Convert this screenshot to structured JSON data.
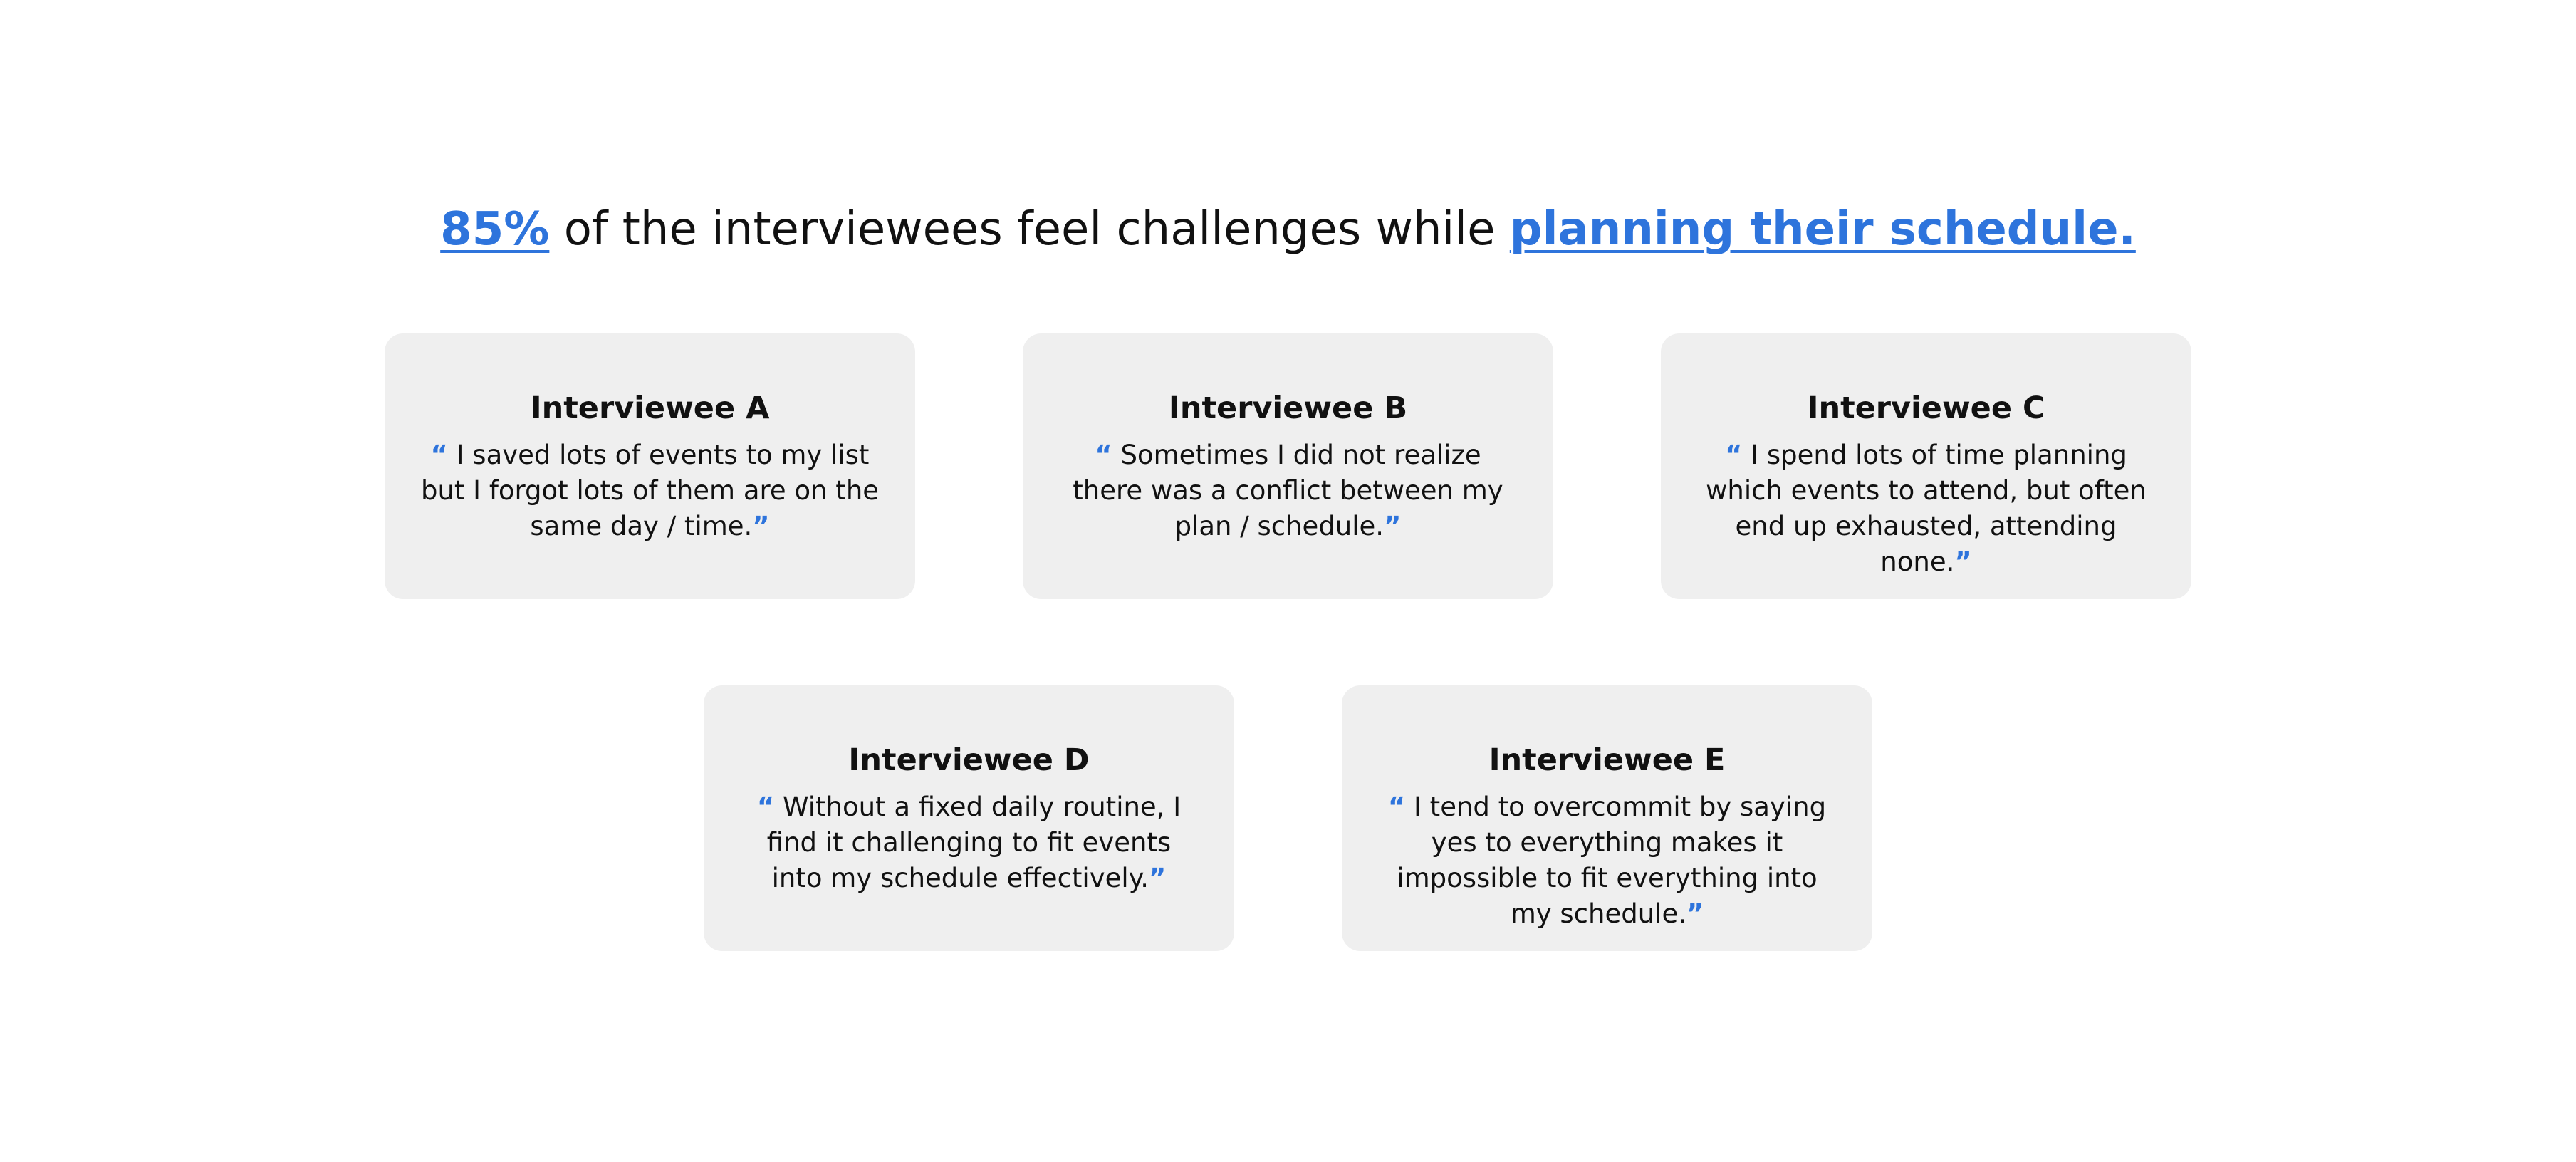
{
  "headline": {
    "stat": "85%",
    "middle": " of the interviewees feel challenges while ",
    "highlight": "planning their schedule."
  },
  "quote_marks": {
    "open": "“",
    "close": "”"
  },
  "accent_color": "#2e74dc",
  "cards": [
    {
      "title": "Interviewee A",
      "quote": " I saved lots of events to my list but I forgot lots of them are on the same day / time."
    },
    {
      "title": "Interviewee B",
      "quote": " Sometimes I did not realize there was a conflict between my plan / schedule."
    },
    {
      "title": "Interviewee C",
      "quote": " I spend lots of time planning which events to attend, but often end up exhausted, attending none."
    },
    {
      "title": "Interviewee D",
      "quote": " Without a fixed daily routine, I find it challenging to fit events into my schedule effectively."
    },
    {
      "title": "Interviewee E",
      "quote": " I tend to overcommit by saying yes to everything makes it impossible to fit everything into my schedule."
    }
  ]
}
